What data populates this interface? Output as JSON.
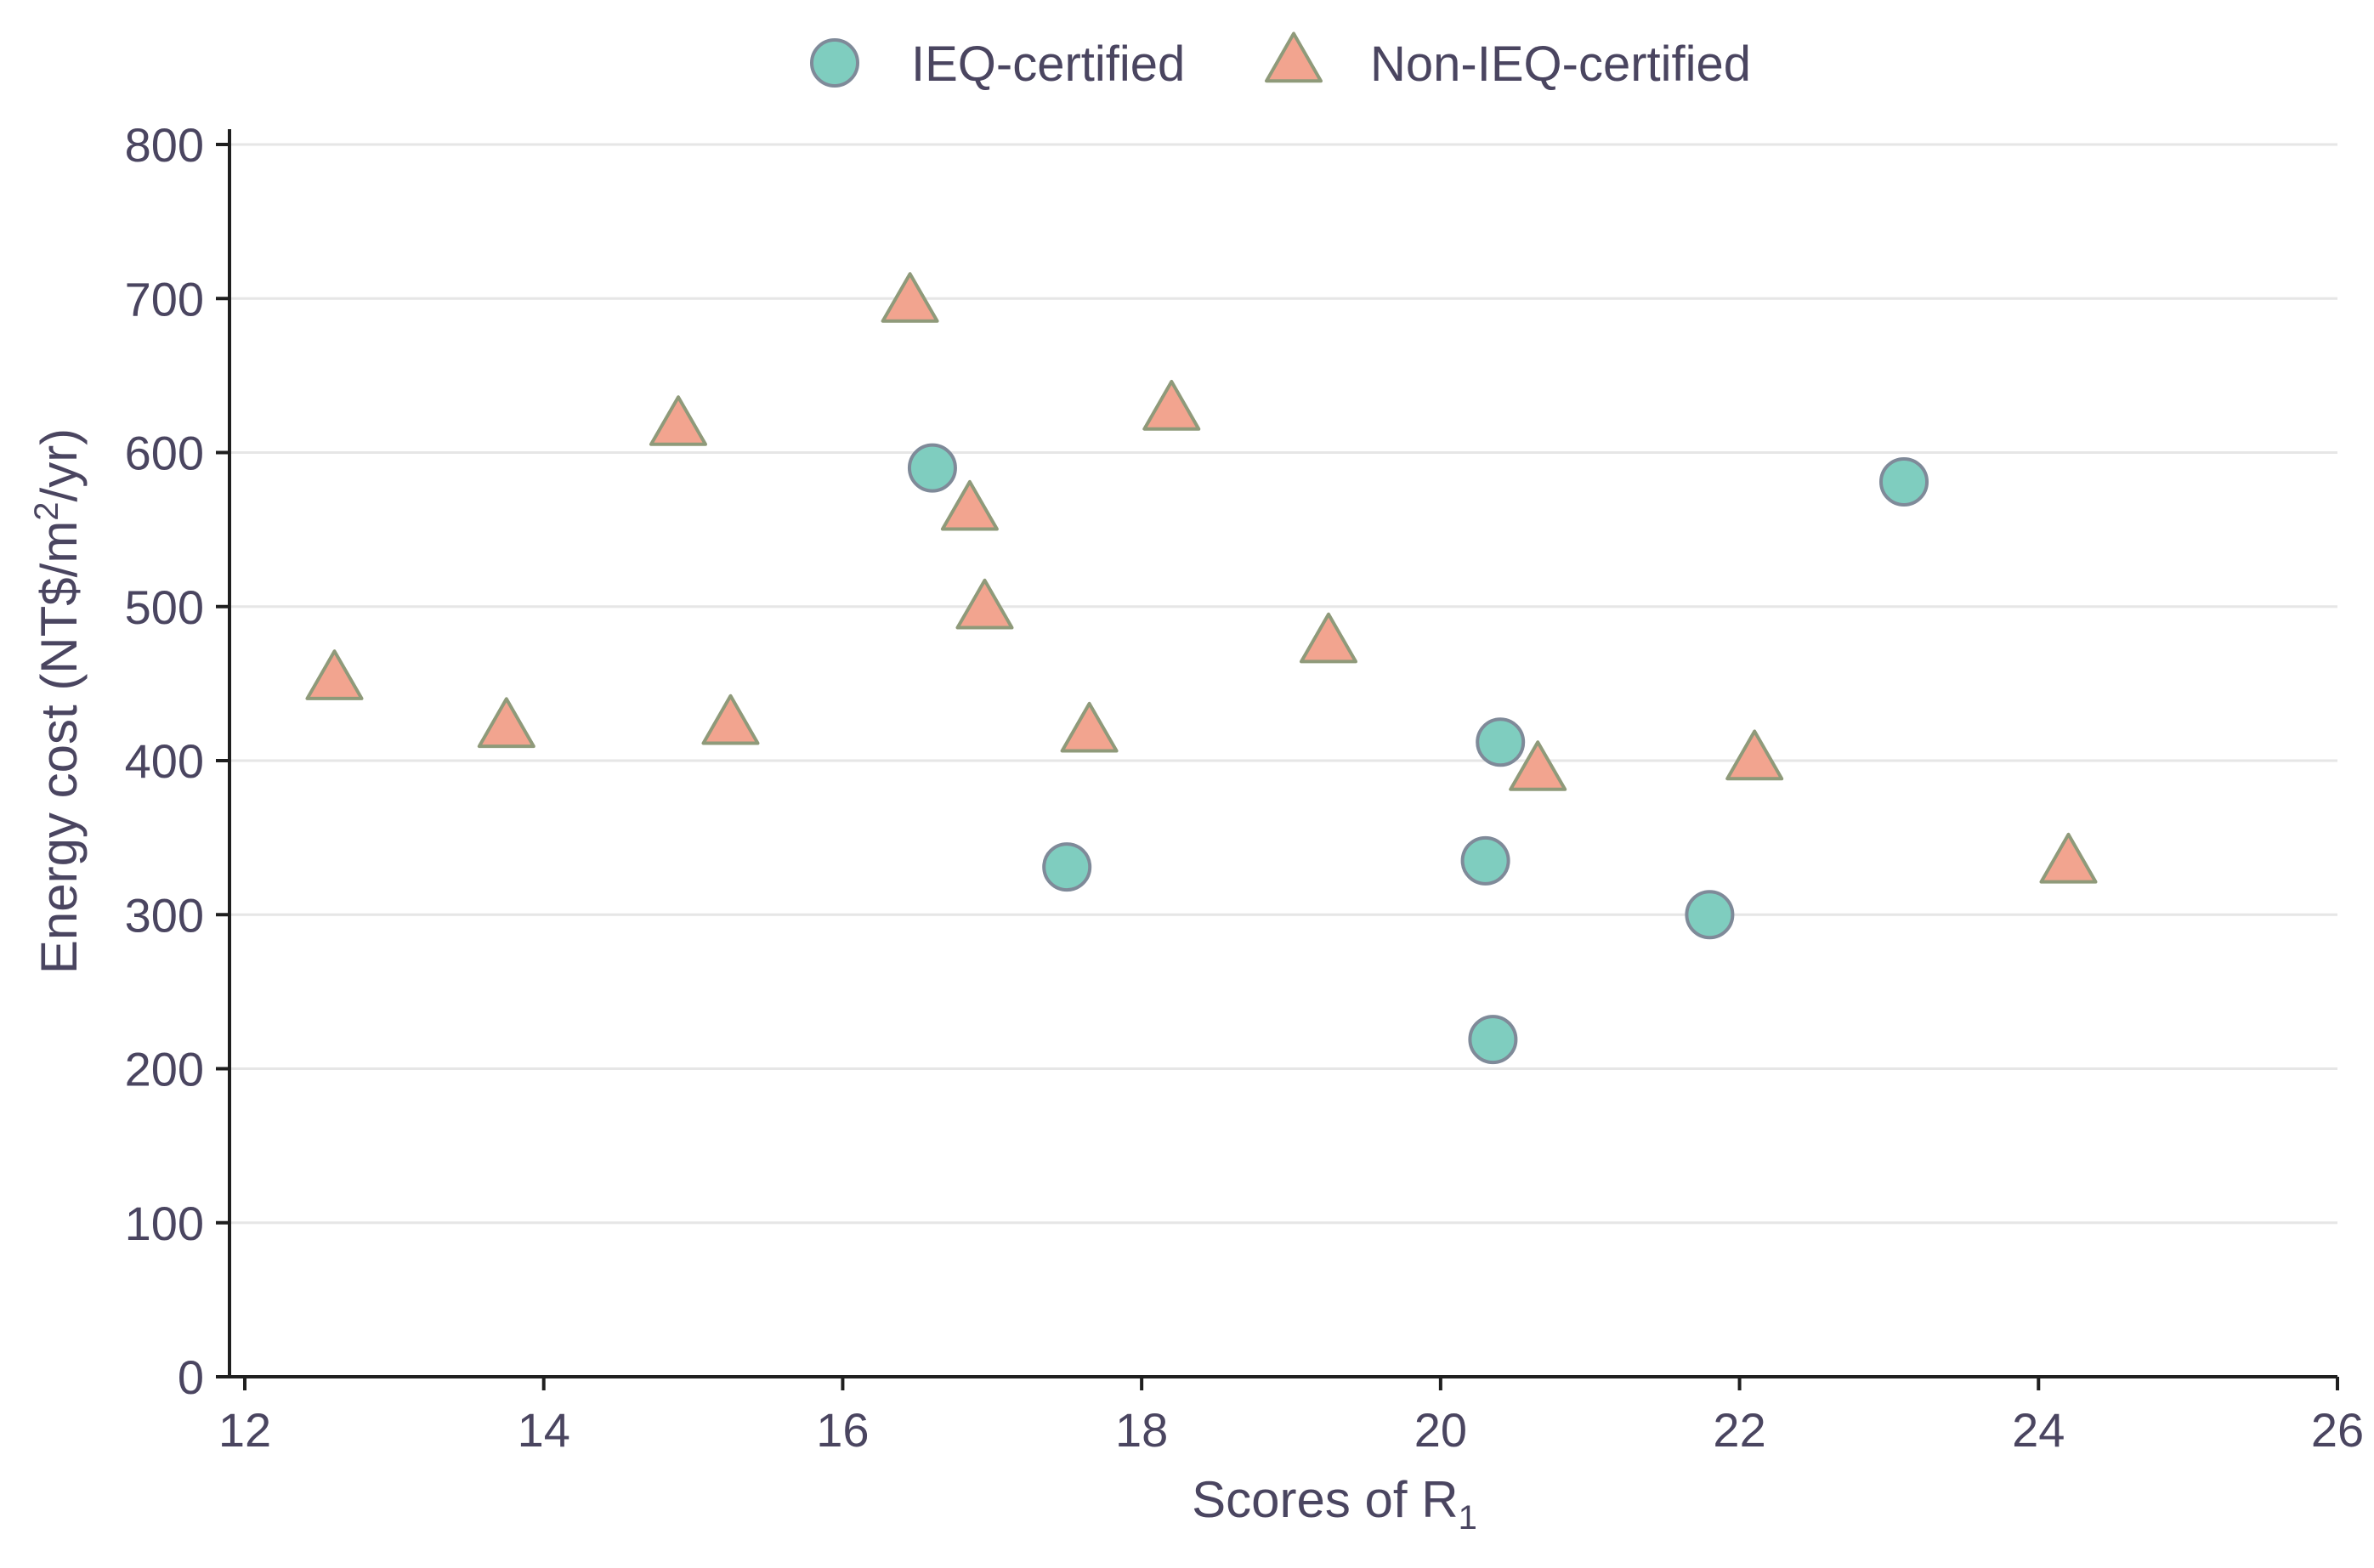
{
  "chart_data": {
    "type": "scatter",
    "title": "",
    "xlabel": "Scores of R",
    "xlabel_subscript": "1",
    "ylabel": "Energy cost (NT$/m",
    "ylabel_superscript": "2",
    "ylabel_suffix": "/yr)",
    "xlim": [
      12,
      26
    ],
    "ylim": [
      0,
      800
    ],
    "x_ticks": [
      12,
      14,
      16,
      18,
      20,
      22,
      24,
      26
    ],
    "y_ticks": [
      0,
      100,
      200,
      300,
      400,
      500,
      600,
      700,
      800
    ],
    "grid": "horizontal",
    "legend_position": "top-center",
    "series": [
      {
        "name": "IEQ-certified",
        "marker": "circle",
        "color": "#7fcdbf",
        "points": [
          {
            "x": 16.6,
            "y": 590
          },
          {
            "x": 17.5,
            "y": 331
          },
          {
            "x": 20.3,
            "y": 335
          },
          {
            "x": 20.4,
            "y": 412
          },
          {
            "x": 20.35,
            "y": 219
          },
          {
            "x": 21.8,
            "y": 300
          },
          {
            "x": 23.1,
            "y": 581
          }
        ]
      },
      {
        "name": "Non-IEQ-certified",
        "marker": "triangle",
        "color": "#f2a48f",
        "points": [
          {
            "x": 12.6,
            "y": 452
          },
          {
            "x": 13.75,
            "y": 421
          },
          {
            "x": 14.9,
            "y": 617
          },
          {
            "x": 15.25,
            "y": 423
          },
          {
            "x": 16.45,
            "y": 697
          },
          {
            "x": 16.85,
            "y": 562
          },
          {
            "x": 16.95,
            "y": 498
          },
          {
            "x": 17.65,
            "y": 418
          },
          {
            "x": 18.2,
            "y": 627
          },
          {
            "x": 19.25,
            "y": 476
          },
          {
            "x": 20.65,
            "y": 393
          },
          {
            "x": 22.1,
            "y": 400
          },
          {
            "x": 24.2,
            "y": 333
          }
        ]
      }
    ]
  }
}
